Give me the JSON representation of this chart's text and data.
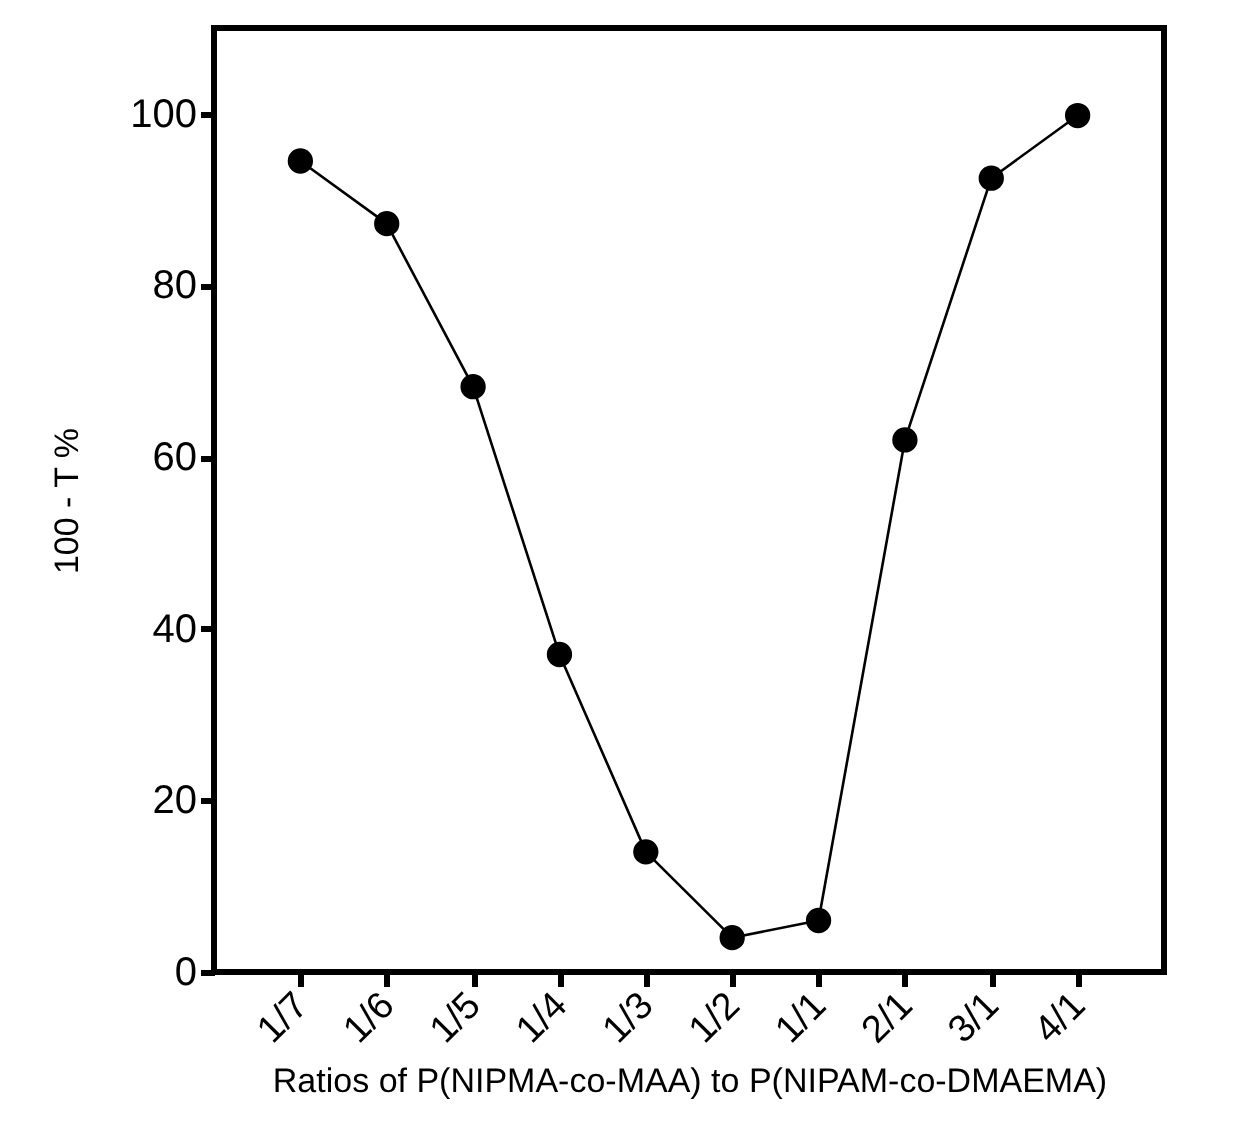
{
  "chart_data": {
    "type": "line",
    "xlabel": "Ratios of P(NIPMA-co-MAA) to P(NIPAM-co-DMAEMA)",
    "ylabel": "100 - T %",
    "categories": [
      "1/7",
      "1/6",
      "1/5",
      "1/4",
      "1/3",
      "1/2",
      "1/1",
      "2/1",
      "3/1",
      "4/1"
    ],
    "series": [
      {
        "color": "#000000",
        "values": [
          94.5,
          87.2,
          68.2,
          37,
          14,
          4,
          6,
          62,
          92.5,
          99.8
        ]
      }
    ],
    "ylim": [
      0,
      110
    ],
    "yticks": [
      0,
      20,
      40,
      60,
      80,
      100
    ],
    "grid": false,
    "marker": "circle",
    "line_style": "solid"
  }
}
